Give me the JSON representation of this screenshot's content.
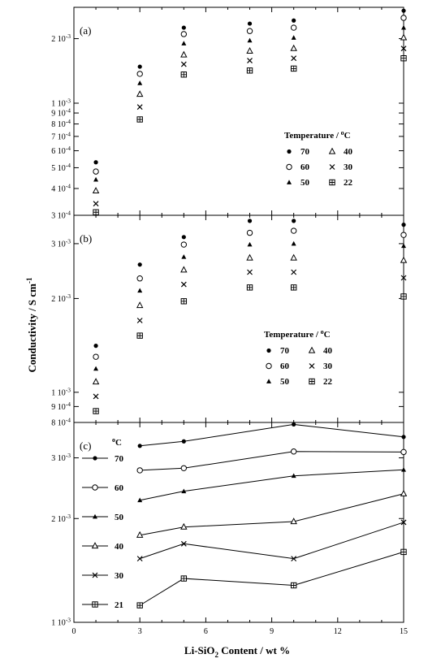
{
  "figure": {
    "y_axis_title": "Conductivity / S cm",
    "y_axis_title_sup": "-1",
    "x_axis_title_pre": "Li-SiO",
    "x_axis_title_sub": "2",
    "x_axis_title_post": " Content / wt %",
    "x_ticks": [
      "0",
      "3",
      "6",
      "9",
      "12",
      "15"
    ]
  },
  "chart_data": [
    {
      "type": "scatter",
      "panel_label": "(a)",
      "x_axis_scale": "linear",
      "y_axis_scale": "log",
      "xlim": [
        0,
        15
      ],
      "ylim": [
        0.0003,
        0.0028
      ],
      "y_tick_labels": [
        {
          "value": 0.0003,
          "mant": "3",
          "exp": "-4"
        },
        {
          "value": 0.0004,
          "mant": "4",
          "exp": "-4"
        },
        {
          "value": 0.0005,
          "mant": "5",
          "exp": "-4"
        },
        {
          "value": 0.0006,
          "mant": "6",
          "exp": "-4"
        },
        {
          "value": 0.0007,
          "mant": "7",
          "exp": "-4"
        },
        {
          "value": 0.0008,
          "mant": "8",
          "exp": "-4"
        },
        {
          "value": 0.0009,
          "mant": "9",
          "exp": "-4"
        },
        {
          "value": 0.001,
          "mant": "1",
          "exp": "-3"
        },
        {
          "value": 0.002,
          "mant": "2",
          "exp": "-3"
        }
      ],
      "legend": {
        "title": "Temperature / ",
        "title_unit_sup": "o",
        "title_unit": "C",
        "placement": "lower-right"
      },
      "x": [
        1,
        3,
        5,
        8,
        10,
        15
      ],
      "series": [
        {
          "name": "70",
          "marker": "filled-circle",
          "values": [
            0.00053,
            0.00148,
            0.00225,
            0.00235,
            0.00243,
            0.0027
          ]
        },
        {
          "name": "60",
          "marker": "open-circle",
          "values": [
            0.00048,
            0.00137,
            0.0021,
            0.00217,
            0.00225,
            0.0025
          ]
        },
        {
          "name": "50",
          "marker": "filled-triangle",
          "values": [
            0.00044,
            0.00124,
            0.0019,
            0.00196,
            0.00202,
            0.00225
          ]
        },
        {
          "name": "40",
          "marker": "open-triangle",
          "values": [
            0.00039,
            0.0011,
            0.00168,
            0.00175,
            0.0018,
            0.00202
          ]
        },
        {
          "name": "30",
          "marker": "x-cross",
          "values": [
            0.00034,
            0.00096,
            0.00152,
            0.00158,
            0.00162,
            0.0018
          ]
        },
        {
          "name": "22",
          "marker": "boxed-plus",
          "values": [
            0.00031,
            0.00084,
            0.00136,
            0.00142,
            0.00145,
            0.00162
          ]
        }
      ]
    },
    {
      "type": "scatter",
      "panel_label": "(b)",
      "x_axis_scale": "linear",
      "y_axis_scale": "log",
      "xlim": [
        0,
        15
      ],
      "ylim": [
        0.0008,
        0.0037
      ],
      "y_tick_labels": [
        {
          "value": 0.0008,
          "mant": "8",
          "exp": "-4"
        },
        {
          "value": 0.0009,
          "mant": "9",
          "exp": "-4"
        },
        {
          "value": 0.001,
          "mant": "1",
          "exp": "-3"
        },
        {
          "value": 0.002,
          "mant": "2",
          "exp": "-3"
        },
        {
          "value": 0.003,
          "mant": "3",
          "exp": "-3"
        }
      ],
      "legend": {
        "title": "Temperature / ",
        "title_unit_sup": "o",
        "title_unit": "C",
        "placement": "lower-right"
      },
      "x": [
        1,
        3,
        5,
        8,
        10,
        15
      ],
      "series": [
        {
          "name": "70",
          "marker": "filled-circle",
          "values": [
            0.00141,
            0.00257,
            0.00315,
            0.00355,
            0.00355,
            0.00345
          ]
        },
        {
          "name": "60",
          "marker": "open-circle",
          "values": [
            0.0013,
            0.00232,
            0.00298,
            0.00325,
            0.0033,
            0.0032
          ]
        },
        {
          "name": "50",
          "marker": "filled-triangle",
          "values": [
            0.00119,
            0.00212,
            0.00272,
            0.00298,
            0.003,
            0.00295
          ]
        },
        {
          "name": "40",
          "marker": "open-triangle",
          "values": [
            0.00108,
            0.0019,
            0.00247,
            0.0027,
            0.0027,
            0.00265
          ]
        },
        {
          "name": "30",
          "marker": "x-cross",
          "values": [
            0.00097,
            0.0017,
            0.00222,
            0.00243,
            0.00243,
            0.00233
          ]
        },
        {
          "name": "22",
          "marker": "boxed-plus",
          "values": [
            0.00087,
            0.00152,
            0.00196,
            0.00217,
            0.00217,
            0.00203
          ]
        }
      ]
    },
    {
      "type": "line",
      "panel_label": "(c)",
      "x_axis_scale": "linear",
      "y_axis_scale": "log",
      "xlim": [
        0,
        15
      ],
      "ylim": [
        0.001,
        0.0038
      ],
      "y_tick_labels": [
        {
          "value": 0.001,
          "mant": "1",
          "exp": "-3"
        },
        {
          "value": 0.002,
          "mant": "2",
          "exp": "-3"
        },
        {
          "value": 0.003,
          "mant": "3",
          "exp": "-3"
        }
      ],
      "legend": {
        "title_sup": "o",
        "title": "C",
        "placement": "left"
      },
      "x": [
        3,
        5,
        10,
        15
      ],
      "series": [
        {
          "name": "70",
          "marker": "filled-circle",
          "values": [
            0.00325,
            0.00335,
            0.00375,
            0.00345
          ]
        },
        {
          "name": "60",
          "marker": "open-circle",
          "values": [
            0.00276,
            0.0028,
            0.00313,
            0.00312
          ]
        },
        {
          "name": "50",
          "marker": "filled-triangle",
          "values": [
            0.00226,
            0.0024,
            0.00266,
            0.00277
          ]
        },
        {
          "name": "40",
          "marker": "open-triangle",
          "values": [
            0.00179,
            0.00189,
            0.00196,
            0.00236
          ]
        },
        {
          "name": "30",
          "marker": "x-cross",
          "values": [
            0.00153,
            0.00169,
            0.00153,
            0.00195
          ]
        },
        {
          "name": "21",
          "marker": "boxed-plus",
          "values": [
            0.00112,
            0.00134,
            0.00128,
            0.0016
          ]
        }
      ]
    }
  ]
}
